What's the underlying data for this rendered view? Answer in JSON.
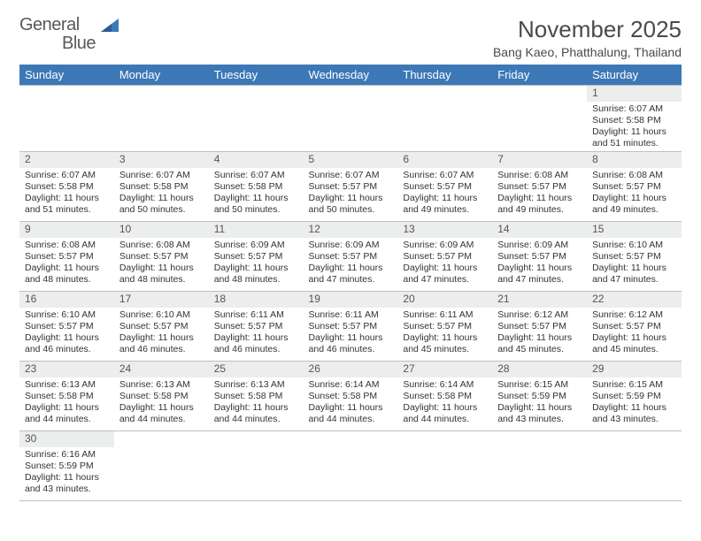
{
  "colors": {
    "header_bg": "#3d78b6",
    "header_text": "#ffffff",
    "daynum_bg": "#eceded",
    "border": "#bfbfbf",
    "text": "#333333",
    "title_text": "#4a4a4a",
    "logo_gray": "#58595b",
    "logo_blue": "#3d78b6"
  },
  "logo": {
    "part1": "General",
    "part2": "Blue"
  },
  "title": "November 2025",
  "location": "Bang Kaeo, Phatthalung, Thailand",
  "day_headers": [
    "Sunday",
    "Monday",
    "Tuesday",
    "Wednesday",
    "Thursday",
    "Friday",
    "Saturday"
  ],
  "weeks": [
    [
      {
        "n": "",
        "sr": "",
        "ss": "",
        "dl": ""
      },
      {
        "n": "",
        "sr": "",
        "ss": "",
        "dl": ""
      },
      {
        "n": "",
        "sr": "",
        "ss": "",
        "dl": ""
      },
      {
        "n": "",
        "sr": "",
        "ss": "",
        "dl": ""
      },
      {
        "n": "",
        "sr": "",
        "ss": "",
        "dl": ""
      },
      {
        "n": "",
        "sr": "",
        "ss": "",
        "dl": ""
      },
      {
        "n": "1",
        "sr": "Sunrise: 6:07 AM",
        "ss": "Sunset: 5:58 PM",
        "dl": "Daylight: 11 hours and 51 minutes."
      }
    ],
    [
      {
        "n": "2",
        "sr": "Sunrise: 6:07 AM",
        "ss": "Sunset: 5:58 PM",
        "dl": "Daylight: 11 hours and 51 minutes."
      },
      {
        "n": "3",
        "sr": "Sunrise: 6:07 AM",
        "ss": "Sunset: 5:58 PM",
        "dl": "Daylight: 11 hours and 50 minutes."
      },
      {
        "n": "4",
        "sr": "Sunrise: 6:07 AM",
        "ss": "Sunset: 5:58 PM",
        "dl": "Daylight: 11 hours and 50 minutes."
      },
      {
        "n": "5",
        "sr": "Sunrise: 6:07 AM",
        "ss": "Sunset: 5:57 PM",
        "dl": "Daylight: 11 hours and 50 minutes."
      },
      {
        "n": "6",
        "sr": "Sunrise: 6:07 AM",
        "ss": "Sunset: 5:57 PM",
        "dl": "Daylight: 11 hours and 49 minutes."
      },
      {
        "n": "7",
        "sr": "Sunrise: 6:08 AM",
        "ss": "Sunset: 5:57 PM",
        "dl": "Daylight: 11 hours and 49 minutes."
      },
      {
        "n": "8",
        "sr": "Sunrise: 6:08 AM",
        "ss": "Sunset: 5:57 PM",
        "dl": "Daylight: 11 hours and 49 minutes."
      }
    ],
    [
      {
        "n": "9",
        "sr": "Sunrise: 6:08 AM",
        "ss": "Sunset: 5:57 PM",
        "dl": "Daylight: 11 hours and 48 minutes."
      },
      {
        "n": "10",
        "sr": "Sunrise: 6:08 AM",
        "ss": "Sunset: 5:57 PM",
        "dl": "Daylight: 11 hours and 48 minutes."
      },
      {
        "n": "11",
        "sr": "Sunrise: 6:09 AM",
        "ss": "Sunset: 5:57 PM",
        "dl": "Daylight: 11 hours and 48 minutes."
      },
      {
        "n": "12",
        "sr": "Sunrise: 6:09 AM",
        "ss": "Sunset: 5:57 PM",
        "dl": "Daylight: 11 hours and 47 minutes."
      },
      {
        "n": "13",
        "sr": "Sunrise: 6:09 AM",
        "ss": "Sunset: 5:57 PM",
        "dl": "Daylight: 11 hours and 47 minutes."
      },
      {
        "n": "14",
        "sr": "Sunrise: 6:09 AM",
        "ss": "Sunset: 5:57 PM",
        "dl": "Daylight: 11 hours and 47 minutes."
      },
      {
        "n": "15",
        "sr": "Sunrise: 6:10 AM",
        "ss": "Sunset: 5:57 PM",
        "dl": "Daylight: 11 hours and 47 minutes."
      }
    ],
    [
      {
        "n": "16",
        "sr": "Sunrise: 6:10 AM",
        "ss": "Sunset: 5:57 PM",
        "dl": "Daylight: 11 hours and 46 minutes."
      },
      {
        "n": "17",
        "sr": "Sunrise: 6:10 AM",
        "ss": "Sunset: 5:57 PM",
        "dl": "Daylight: 11 hours and 46 minutes."
      },
      {
        "n": "18",
        "sr": "Sunrise: 6:11 AM",
        "ss": "Sunset: 5:57 PM",
        "dl": "Daylight: 11 hours and 46 minutes."
      },
      {
        "n": "19",
        "sr": "Sunrise: 6:11 AM",
        "ss": "Sunset: 5:57 PM",
        "dl": "Daylight: 11 hours and 46 minutes."
      },
      {
        "n": "20",
        "sr": "Sunrise: 6:11 AM",
        "ss": "Sunset: 5:57 PM",
        "dl": "Daylight: 11 hours and 45 minutes."
      },
      {
        "n": "21",
        "sr": "Sunrise: 6:12 AM",
        "ss": "Sunset: 5:57 PM",
        "dl": "Daylight: 11 hours and 45 minutes."
      },
      {
        "n": "22",
        "sr": "Sunrise: 6:12 AM",
        "ss": "Sunset: 5:57 PM",
        "dl": "Daylight: 11 hours and 45 minutes."
      }
    ],
    [
      {
        "n": "23",
        "sr": "Sunrise: 6:13 AM",
        "ss": "Sunset: 5:58 PM",
        "dl": "Daylight: 11 hours and 44 minutes."
      },
      {
        "n": "24",
        "sr": "Sunrise: 6:13 AM",
        "ss": "Sunset: 5:58 PM",
        "dl": "Daylight: 11 hours and 44 minutes."
      },
      {
        "n": "25",
        "sr": "Sunrise: 6:13 AM",
        "ss": "Sunset: 5:58 PM",
        "dl": "Daylight: 11 hours and 44 minutes."
      },
      {
        "n": "26",
        "sr": "Sunrise: 6:14 AM",
        "ss": "Sunset: 5:58 PM",
        "dl": "Daylight: 11 hours and 44 minutes."
      },
      {
        "n": "27",
        "sr": "Sunrise: 6:14 AM",
        "ss": "Sunset: 5:58 PM",
        "dl": "Daylight: 11 hours and 44 minutes."
      },
      {
        "n": "28",
        "sr": "Sunrise: 6:15 AM",
        "ss": "Sunset: 5:59 PM",
        "dl": "Daylight: 11 hours and 43 minutes."
      },
      {
        "n": "29",
        "sr": "Sunrise: 6:15 AM",
        "ss": "Sunset: 5:59 PM",
        "dl": "Daylight: 11 hours and 43 minutes."
      }
    ],
    [
      {
        "n": "30",
        "sr": "Sunrise: 6:16 AM",
        "ss": "Sunset: 5:59 PM",
        "dl": "Daylight: 11 hours and 43 minutes."
      },
      {
        "n": "",
        "sr": "",
        "ss": "",
        "dl": ""
      },
      {
        "n": "",
        "sr": "",
        "ss": "",
        "dl": ""
      },
      {
        "n": "",
        "sr": "",
        "ss": "",
        "dl": ""
      },
      {
        "n": "",
        "sr": "",
        "ss": "",
        "dl": ""
      },
      {
        "n": "",
        "sr": "",
        "ss": "",
        "dl": ""
      },
      {
        "n": "",
        "sr": "",
        "ss": "",
        "dl": ""
      }
    ]
  ]
}
